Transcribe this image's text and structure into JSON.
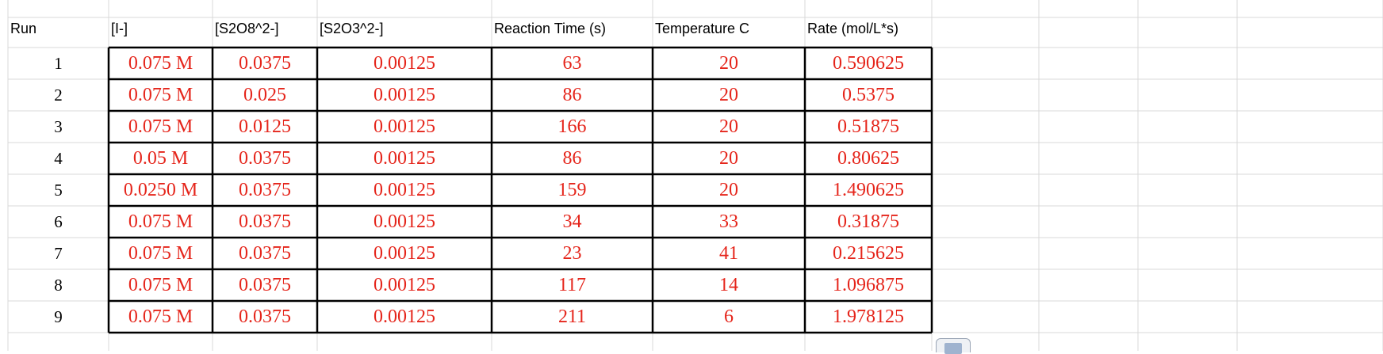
{
  "sheet": {
    "headers": [
      "Run",
      "[I-]",
      "[S2O8^2-]",
      "[S2O3^2-]",
      "Reaction Time (s)",
      "Temperature C",
      "Rate (mol/L*s)"
    ],
    "rows": [
      [
        "1",
        "0.075 M",
        "0.0375",
        "0.00125",
        "63",
        "20",
        "0.590625"
      ],
      [
        "2",
        "0.075 M",
        "0.025",
        "0.00125",
        "86",
        "20",
        "0.5375"
      ],
      [
        "3",
        "0.075 M",
        "0.0125",
        "0.00125",
        "166",
        "20",
        "0.51875"
      ],
      [
        "4",
        "0.05 M",
        "0.0375",
        "0.00125",
        "86",
        "20",
        "0.80625"
      ],
      [
        "5",
        "0.0250 M",
        "0.0375",
        "0.00125",
        "159",
        "20",
        "1.490625"
      ],
      [
        "6",
        "0.075 M",
        "0.0375",
        "0.00125",
        "34",
        "33",
        "0.31875"
      ],
      [
        "7",
        "0.075 M",
        "0.0375",
        "0.00125",
        "23",
        "41",
        "0.215625"
      ],
      [
        "8",
        "0.075 M",
        "0.0375",
        "0.00125",
        "117",
        "14",
        "1.096875"
      ],
      [
        "9",
        "0.075 M",
        "0.0375",
        "0.00125",
        "211",
        "6",
        "1.978125"
      ]
    ],
    "colors": {
      "value_text": "#e5251b",
      "gridline": "#d9d9d9",
      "border": "#000000"
    },
    "corner_widget_icon": "paste-options-icon"
  }
}
